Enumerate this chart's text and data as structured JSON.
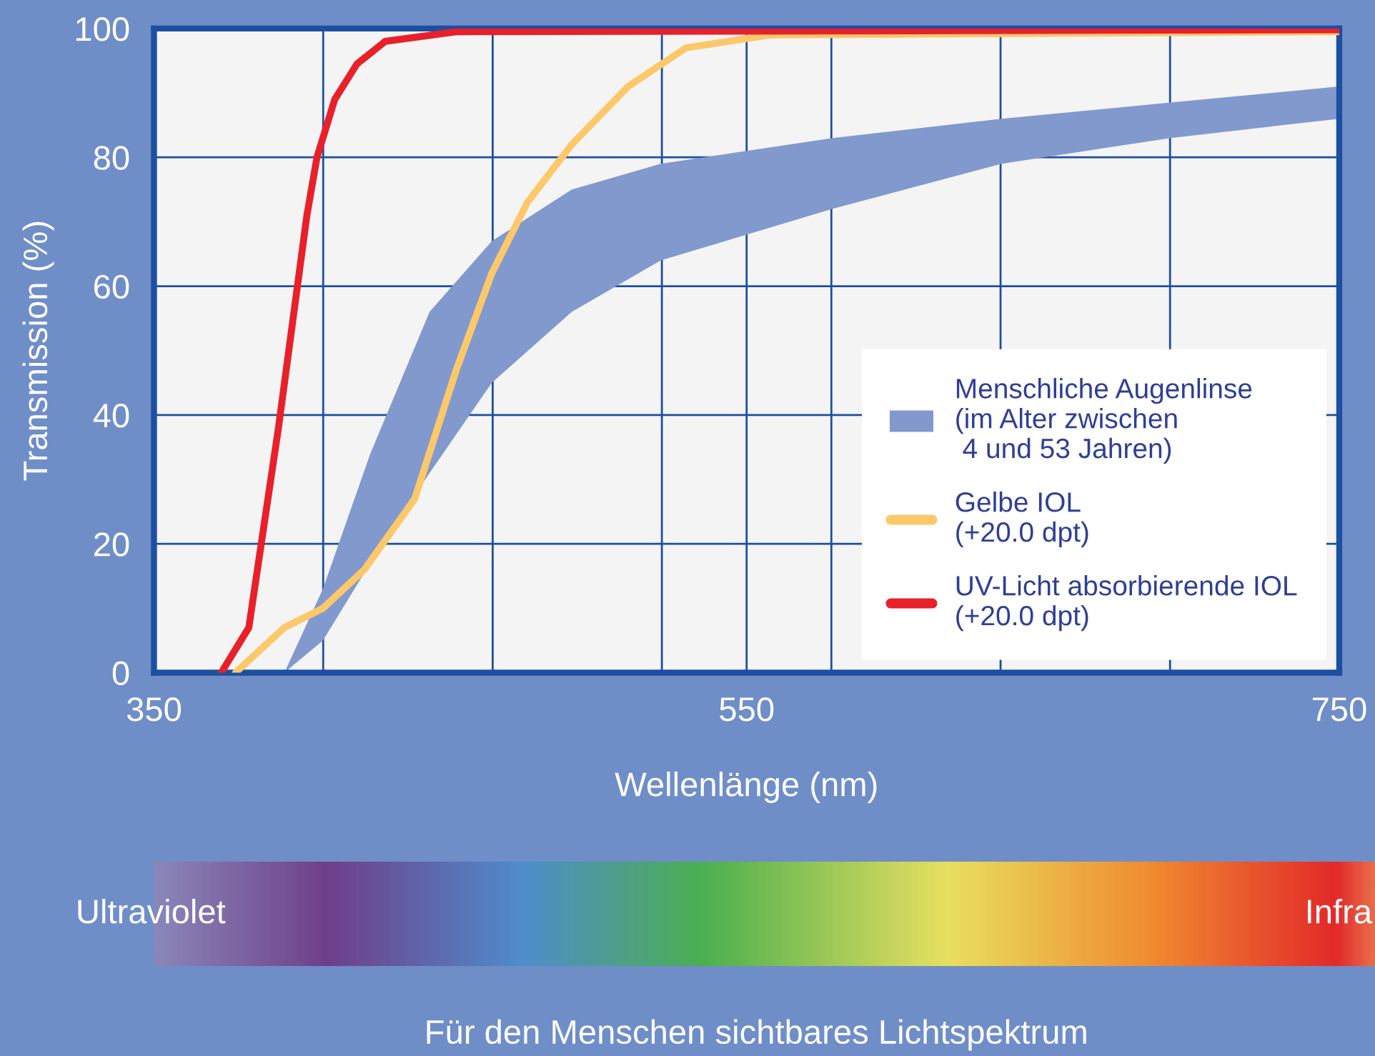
{
  "chart_data": {
    "type": "line",
    "xlabel": "Wellenlänge (nm)",
    "ylabel": "Transmission (%)",
    "xlim": [
      350,
      750
    ],
    "ylim": [
      0,
      100
    ],
    "xticks": [
      350,
      {
        "value": 407.1,
        "label": null
      },
      {
        "value": 464.3,
        "label": null
      },
      {
        "value": 521.4,
        "label": null
      },
      550,
      {
        "value": 578.6,
        "label": null
      },
      {
        "value": 635.7,
        "label": null
      },
      {
        "value": 692.9,
        "label": null
      },
      750
    ],
    "yticks": [
      0,
      20,
      40,
      60,
      80,
      100
    ],
    "grid": true,
    "legend": "bottom right",
    "series": [
      {
        "name": "Menschliche Augenlinse\n(im Alter zwischen\n 4 und 53 Jahren)",
        "type": "area",
        "color": "#8299cd",
        "x": [
          394,
          407,
          423,
          443,
          464,
          491,
          521,
          579,
          636,
          693,
          750
        ],
        "values": [
          null,
          null,
          null,
          null,
          null,
          null,
          null,
          null,
          null,
          null,
          null
        ],
        "upper": [
          0,
          13,
          34,
          56,
          67,
          75,
          79,
          83,
          86,
          88.5,
          91
        ],
        "lower": [
          0,
          5,
          17,
          31,
          45,
          56,
          64,
          72,
          79,
          83,
          86
        ]
      },
      {
        "name": "Gelbe IOL\n(+20.0 dpt)",
        "color": "#fcc86a",
        "x": [
          377.5,
          394,
          407,
          421,
          438,
          452,
          464,
          476,
          491,
          510,
          529.5,
          558,
          750
        ],
        "values": [
          0,
          7,
          10,
          16,
          27,
          47,
          62,
          73,
          82,
          91,
          97,
          99,
          99.5
        ]
      },
      {
        "name": "UV-Licht absorbierende IOL\n(+20.0 dpt)",
        "color": "#e8202a",
        "x": [
          372.7,
          382,
          392,
          401.6,
          405,
          411,
          418.5,
          428,
          452,
          750
        ],
        "values": [
          0,
          7,
          38,
          71,
          80,
          89,
          94.5,
          98,
          99.5,
          99.8
        ]
      }
    ],
    "annotations": [
      "Ultraviolet",
      "Infra",
      "Für den Menschen sichtbares Lichtspektrum"
    ]
  }
}
